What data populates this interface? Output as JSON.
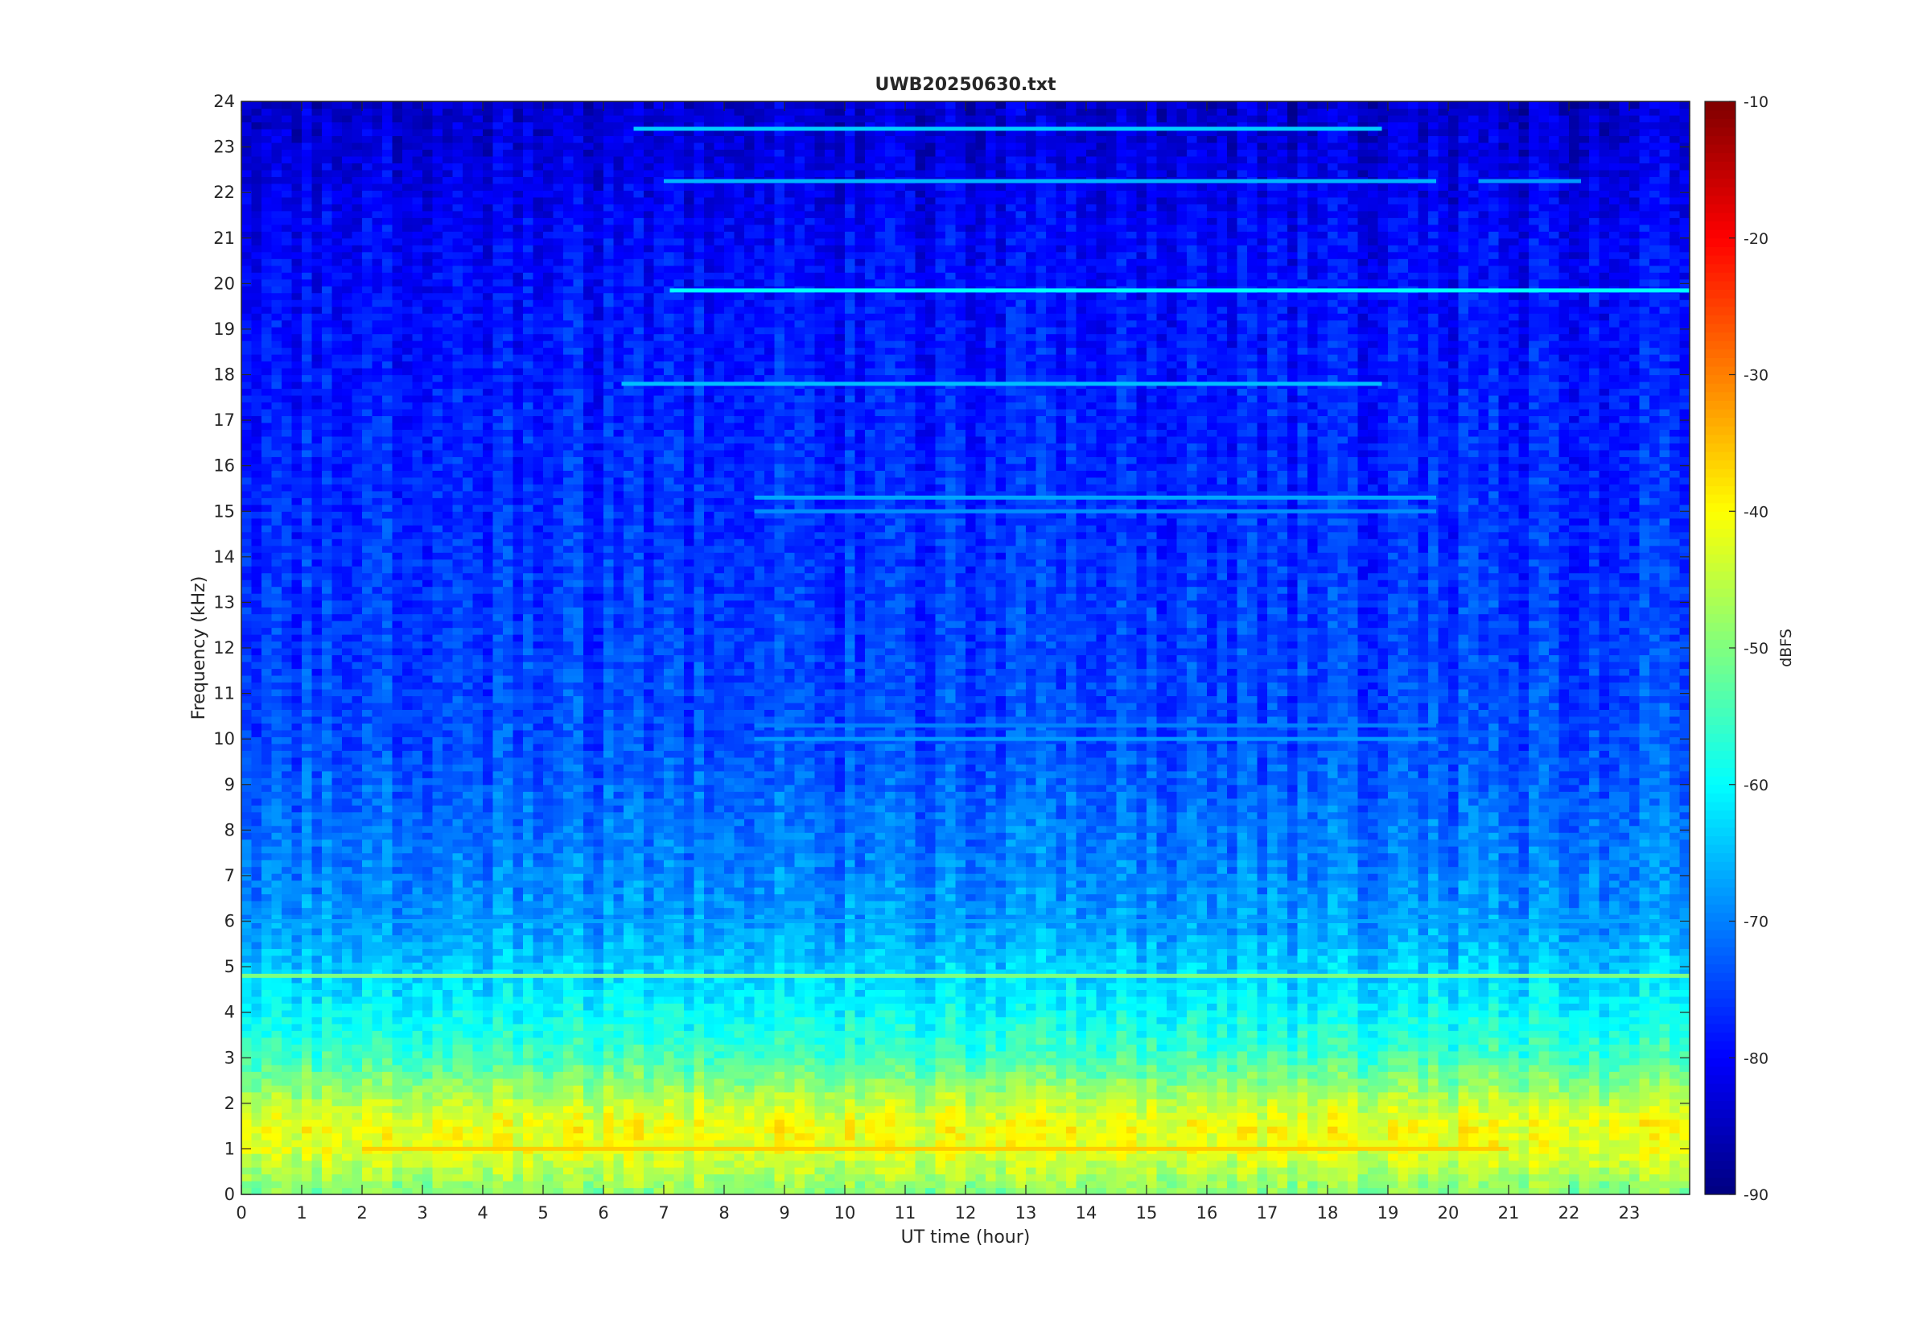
{
  "chart_data": {
    "type": "heatmap",
    "title": "UWB20250630.txt",
    "xlabel": "UT time (hour)",
    "ylabel": "Frequency (kHz)",
    "xlim": [
      0,
      24
    ],
    "ylim": [
      0,
      24
    ],
    "x_ticks": [
      "0",
      "1",
      "2",
      "3",
      "4",
      "5",
      "6",
      "7",
      "8",
      "9",
      "10",
      "11",
      "12",
      "13",
      "14",
      "15",
      "16",
      "17",
      "18",
      "19",
      "20",
      "21",
      "22",
      "23"
    ],
    "y_ticks": [
      "0",
      "1",
      "2",
      "3",
      "4",
      "5",
      "6",
      "7",
      "8",
      "9",
      "10",
      "11",
      "12",
      "13",
      "14",
      "15",
      "16",
      "17",
      "18",
      "19",
      "20",
      "21",
      "22",
      "23",
      "24"
    ],
    "colorbar": {
      "label": "dBFS",
      "range": [
        -90,
        -10
      ],
      "ticks": [
        "-10",
        "-20",
        "-30",
        "-40",
        "-50",
        "-60",
        "-70",
        "-80",
        "-90"
      ],
      "colormap": "jet"
    },
    "grid": false,
    "level_profile_by_frequency": [
      {
        "freq_khz": 0.0,
        "dbfs": -50
      },
      {
        "freq_khz": 0.5,
        "dbfs": -46
      },
      {
        "freq_khz": 1.0,
        "dbfs": -42
      },
      {
        "freq_khz": 1.5,
        "dbfs": -41
      },
      {
        "freq_khz": 2.0,
        "dbfs": -45
      },
      {
        "freq_khz": 2.5,
        "dbfs": -50
      },
      {
        "freq_khz": 3.0,
        "dbfs": -55
      },
      {
        "freq_khz": 4.0,
        "dbfs": -60
      },
      {
        "freq_khz": 5.0,
        "dbfs": -64
      },
      {
        "freq_khz": 6.0,
        "dbfs": -68
      },
      {
        "freq_khz": 8.0,
        "dbfs": -71
      },
      {
        "freq_khz": 10.0,
        "dbfs": -74
      },
      {
        "freq_khz": 14.0,
        "dbfs": -76
      },
      {
        "freq_khz": 18.0,
        "dbfs": -78
      },
      {
        "freq_khz": 21.0,
        "dbfs": -80
      },
      {
        "freq_khz": 24.0,
        "dbfs": -84
      }
    ],
    "tone_lines": [
      {
        "freq_khz": 23.4,
        "t_start": 6.5,
        "t_end": 18.9,
        "dbfs": -64
      },
      {
        "freq_khz": 22.25,
        "t_start": 7.0,
        "t_end": 19.8,
        "dbfs": -66
      },
      {
        "freq_khz": 22.25,
        "t_start": 20.5,
        "t_end": 22.2,
        "dbfs": -68
      },
      {
        "freq_khz": 19.85,
        "t_start": 7.1,
        "t_end": 24.0,
        "dbfs": -60
      },
      {
        "freq_khz": 17.8,
        "t_start": 6.3,
        "t_end": 18.9,
        "dbfs": -65
      },
      {
        "freq_khz": 15.3,
        "t_start": 8.5,
        "t_end": 19.8,
        "dbfs": -67
      },
      {
        "freq_khz": 15.0,
        "t_start": 8.5,
        "t_end": 19.8,
        "dbfs": -69
      },
      {
        "freq_khz": 10.0,
        "t_start": 8.5,
        "t_end": 19.8,
        "dbfs": -68
      },
      {
        "freq_khz": 10.3,
        "t_start": 8.5,
        "t_end": 19.8,
        "dbfs": -70
      },
      {
        "freq_khz": 6.0,
        "t_start": 0.0,
        "t_end": 24.0,
        "dbfs": -67
      },
      {
        "freq_khz": 4.8,
        "t_start": 0.0,
        "t_end": 24.0,
        "dbfs": -50
      },
      {
        "freq_khz": 1.0,
        "t_start": 2.0,
        "t_end": 21.0,
        "dbfs": -36
      }
    ]
  }
}
